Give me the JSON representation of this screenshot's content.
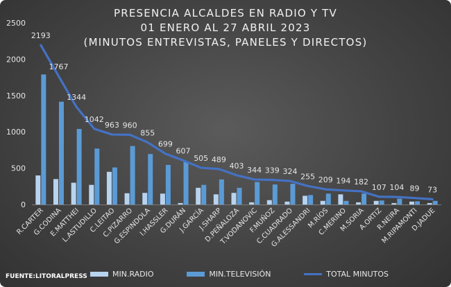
{
  "title": {
    "line1": "PRESENCIA ALCALDES EN RADIO Y TV",
    "line2": "01 ENERO AL 27 ABRIL 2023",
    "line3": "(MINUTOS ENTREVISTAS, PANELES Y DIRECTOS)"
  },
  "source": "FUENTE:LITORALPRESS",
  "colors": {
    "radio": "#b7d3ef",
    "tv": "#5b9bd5",
    "total": "#4472c4",
    "text": "#e6e6e6"
  },
  "chart_data": {
    "type": "bar",
    "title": "PRESENCIA ALCALDES EN RADIO Y TV",
    "subtitle": "01 ENERO AL 27 ABRIL 2023 (MINUTOS ENTREVISTAS, PANELES Y DIRECTOS)",
    "xlabel": "",
    "ylabel": "",
    "ylim": [
      0,
      2500
    ],
    "yticks": [
      "0",
      "500",
      "1000",
      "1500",
      "2000",
      "2500"
    ],
    "grid": false,
    "legend_position": "bottom",
    "categories": [
      "R.CARTER",
      "G.CODINA",
      "E.MATTHEI",
      "L.ASTUDILLO",
      "C.LEITAO",
      "C.PIZARRO",
      "G.ESPINDOLA",
      "I.HASSLER",
      "G.DURÁN",
      "J.GARCÍA",
      "J.SHARP",
      "D.PEÑALOZA",
      "T.VODANOVIC",
      "F.MUÑOZ",
      "C.CUADRADO",
      "G.ALESSANDRI",
      "M.RÍOS",
      "C.MERINO",
      "M.SORIA",
      "A.ORTIZ",
      "R.NEIRA",
      "M.RIPAMONTI",
      "D.JADUE"
    ],
    "series": [
      {
        "name": "MIN.RADIO",
        "kind": "bar",
        "values": [
          400,
          350,
          300,
          270,
          450,
          155,
          160,
          150,
          20,
          230,
          140,
          160,
          30,
          60,
          40,
          120,
          50,
          140,
          30,
          50,
          20,
          40,
          20
        ]
      },
      {
        "name": "MIN.TELEVISIÓN",
        "kind": "bar",
        "values": [
          1790,
          1415,
          1040,
          770,
          510,
          805,
          695,
          545,
          590,
          270,
          345,
          230,
          310,
          275,
          285,
          130,
          150,
          50,
          150,
          55,
          80,
          45,
          50
        ]
      },
      {
        "name": "TOTAL MINUTOS",
        "kind": "line",
        "values": [
          2193,
          1767,
          1344,
          1042,
          963,
          960,
          855,
          699,
          607,
          505,
          489,
          403,
          344,
          339,
          324,
          255,
          209,
          194,
          182,
          107,
          104,
          89,
          73
        ]
      }
    ],
    "data_labels": [
      "2193",
      "1767",
      "1344",
      "1042",
      "963",
      "960",
      "855",
      "699",
      "607",
      "505",
      "489",
      "403",
      "344",
      "339",
      "324",
      "255",
      "209",
      "194",
      "182",
      "107",
      "104",
      "89",
      "73"
    ]
  }
}
